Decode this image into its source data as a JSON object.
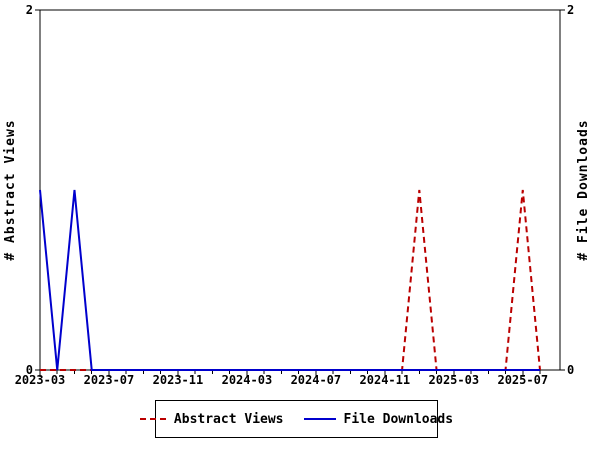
{
  "chart_data": {
    "type": "line",
    "title": "",
    "background": "#ffffff",
    "axis_color": "#000000",
    "x_axis": {
      "months": [
        "2023-03",
        "2023-04",
        "2023-05",
        "2023-06",
        "2023-07",
        "2023-08",
        "2023-09",
        "2023-10",
        "2023-11",
        "2023-12",
        "2024-01",
        "2024-02",
        "2024-03",
        "2024-04",
        "2024-05",
        "2024-06",
        "2024-07",
        "2024-08",
        "2024-09",
        "2024-10",
        "2024-11",
        "2024-12",
        "2025-01",
        "2025-02",
        "2025-03",
        "2025-04",
        "2025-05",
        "2025-06",
        "2025-07",
        "2025-08"
      ],
      "major_tick_every": 4,
      "major_tick_labels": [
        "2023-03",
        "2023-07",
        "2023-11",
        "2024-03",
        "2024-07",
        "2024-11",
        "2025-03",
        "2025-07"
      ]
    },
    "y_axis_left": {
      "label": "# Abstract Views",
      "range": [
        0,
        2
      ],
      "tick_values": [
        0,
        2
      ],
      "tick_labels": [
        "0",
        "2"
      ]
    },
    "y_axis_right": {
      "label": "# File Downloads",
      "range": [
        0,
        2
      ],
      "tick_values": [
        0,
        2
      ],
      "tick_labels": [
        "0",
        "2"
      ]
    },
    "series": [
      {
        "name": "Abstract Views",
        "color": "#bb0000",
        "line_style": "dashed",
        "axis": "left",
        "values": [
          0,
          0,
          0,
          0,
          0,
          0,
          0,
          0,
          0,
          0,
          0,
          0,
          0,
          0,
          0,
          0,
          0,
          0,
          0,
          0,
          0,
          0,
          1,
          0,
          0,
          0,
          0,
          0,
          1,
          0
        ]
      },
      {
        "name": "File Downloads",
        "color": "#0000cd",
        "line_style": "solid",
        "axis": "right",
        "values": [
          1,
          0,
          1,
          0,
          0,
          0,
          0,
          0,
          0,
          0,
          0,
          0,
          0,
          0,
          0,
          0,
          0,
          0,
          0,
          0,
          0,
          0,
          0,
          0,
          0,
          0,
          0,
          0,
          0,
          0
        ]
      }
    ],
    "legend": {
      "position": "bottom-center",
      "entries": [
        "Abstract Views",
        "File Downloads"
      ]
    }
  }
}
